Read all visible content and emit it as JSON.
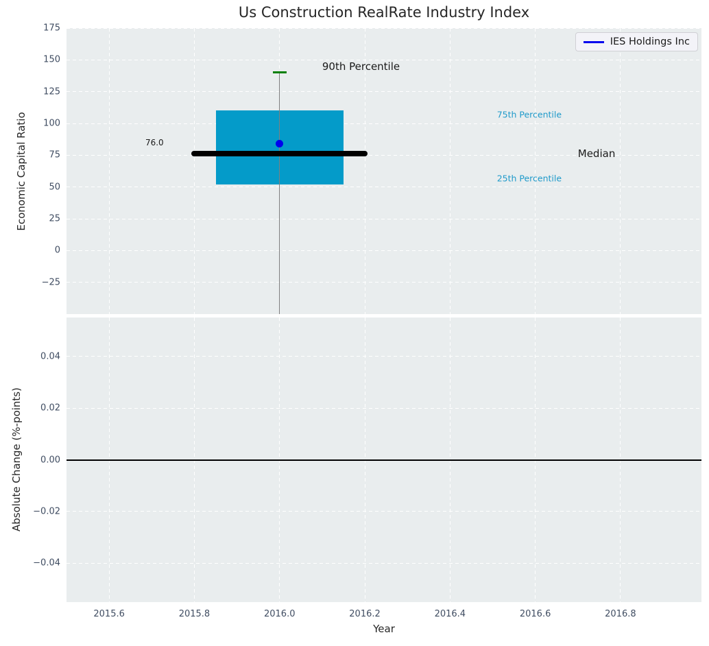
{
  "legend": {
    "label": "IES Holdings Inc",
    "line_color": "#0000ee"
  },
  "colors": {
    "panel_bg": "#e9edee",
    "grid": "#ffffff",
    "box_fill": "#049bc9",
    "median_line": "#000000",
    "whisker": "#7f7f7f",
    "whisker_cap": "#008000",
    "company_point": "#0000ee",
    "tick_label": "#3f4c61",
    "axis_label": "#262626",
    "percentile_label": "#1f9aca",
    "zero_line": "#000000"
  },
  "chart_data": [
    {
      "type": "boxplot",
      "title": "Us Construction RealRate Industry Index",
      "ylabel": "Economic Capital Ratio",
      "ylim": [
        -50,
        175
      ],
      "ytick_values": [
        175,
        150,
        125,
        100,
        75,
        50,
        25,
        0,
        -25
      ],
      "ytick_labels": [
        "175",
        "150",
        "125",
        "100",
        "75",
        "50",
        "25",
        "0",
        "−25"
      ],
      "xlim": [
        2015.5,
        2016.99
      ],
      "grid": "white-dashed",
      "legend_position": "upper right",
      "box": {
        "x": 2016.0,
        "box_left": 2015.85,
        "box_right": 2016.15,
        "q25": 52,
        "median": 76.0,
        "q75": 110,
        "p90": 140,
        "lower_whisker_clipped_below": -50,
        "cap_halfwidth": 0.016,
        "median_span": [
          2015.8,
          2016.2
        ]
      },
      "company_point": {
        "label": "IES Holdings Inc",
        "x": 2016.0,
        "y": 84
      },
      "annotations": [
        {
          "text": "90th Percentile",
          "x": 2016.1,
          "y": 145,
          "color": "#1a1a1a",
          "size": 15
        },
        {
          "text": "75th Percentile",
          "x": 2016.51,
          "y": 107,
          "color": "#1f9aca",
          "size": 12.5
        },
        {
          "text": "Median",
          "x": 2016.7,
          "y": 76.5,
          "color": "#1a1a1a",
          "size": 15
        },
        {
          "text": "25th Percentile",
          "x": 2016.51,
          "y": 57,
          "color": "#1f9aca",
          "size": 12.5
        },
        {
          "text": "76.0",
          "x": 2015.685,
          "y": 85,
          "color": "#1a1a1a",
          "size": 12
        }
      ]
    },
    {
      "type": "line",
      "ylabel": "Absolute Change (%-points)",
      "xlabel": "Year",
      "ylim": [
        -0.055,
        0.055
      ],
      "ytick_values": [
        0.04,
        0.02,
        0,
        -0.02,
        -0.04
      ],
      "ytick_labels": [
        "0.04",
        "0.02",
        "0.00",
        "−0.02",
        "−0.04"
      ],
      "xtick_values": [
        2015.6,
        2015.8,
        2016.0,
        2016.2,
        2016.4,
        2016.6,
        2016.8
      ],
      "xtick_labels": [
        "2015.6",
        "2015.8",
        "2016.0",
        "2016.2",
        "2016.4",
        "2016.6",
        "2016.8"
      ],
      "zero_line": 0.0,
      "series": []
    }
  ]
}
